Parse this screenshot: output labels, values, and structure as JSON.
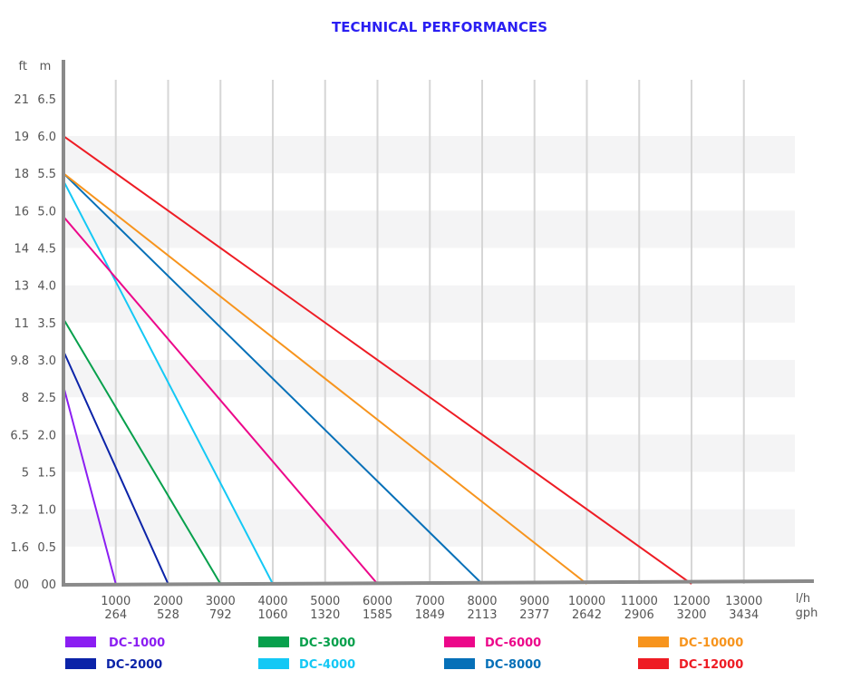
{
  "chart_data": {
    "type": "line",
    "title": "TECHNICAL PERFORMANCES",
    "y_unit_labels": [
      "ft",
      "m"
    ],
    "x_unit_labels": [
      "l/h",
      "gph"
    ],
    "ylim": [
      0,
      6.5
    ],
    "xlim": [
      0,
      14000
    ],
    "y_ticks_m": [
      "00",
      "0.5",
      "1.0",
      "1.5",
      "2.0",
      "2.5",
      "3.0",
      "3.5",
      "4.0",
      "4.5",
      "5.0",
      "5.5",
      "6.0",
      "6.5"
    ],
    "y_ticks_ft": [
      "00",
      "1.6",
      "3.2",
      "5",
      "6.5",
      "8",
      "9.8",
      "11",
      "13",
      "14",
      "16",
      "18",
      "19",
      "21"
    ],
    "x_ticks_lh": [
      "1000",
      "2000",
      "3000",
      "4000",
      "5000",
      "6000",
      "7000",
      "8000",
      "9000",
      "10000",
      "11000",
      "12000",
      "13000"
    ],
    "x_ticks_gph": [
      "264",
      "528",
      "792",
      "1060",
      "1320",
      "1585",
      "1849",
      "2113",
      "2377",
      "2642",
      "2906",
      "3200",
      "3434"
    ],
    "grid": true,
    "legend_placement": "bottom",
    "series": [
      {
        "name": "DC-1000",
        "color": "#8b1ef2",
        "x": [
          0,
          1000
        ],
        "y": [
          2.65,
          0
        ]
      },
      {
        "name": "DC-2000",
        "color": "#0b23a8",
        "x": [
          0,
          2000
        ],
        "y": [
          3.12,
          0
        ]
      },
      {
        "name": "DC-3000",
        "color": "#07a04c",
        "x": [
          0,
          3000
        ],
        "y": [
          3.55,
          0
        ]
      },
      {
        "name": "DC-4000",
        "color": "#14c8f5",
        "x": [
          0,
          4000
        ],
        "y": [
          5.4,
          0
        ]
      },
      {
        "name": "DC-6000",
        "color": "#ec078a",
        "x": [
          0,
          6000
        ],
        "y": [
          4.92,
          0
        ]
      },
      {
        "name": "DC-8000",
        "color": "#0670b8",
        "x": [
          0,
          8000
        ],
        "y": [
          5.5,
          0
        ]
      },
      {
        "name": "DC-10000",
        "color": "#f7941d",
        "x": [
          0,
          10000
        ],
        "y": [
          5.5,
          0
        ]
      },
      {
        "name": "DC-12000",
        "color": "#ee1c24",
        "x": [
          0,
          12000
        ],
        "y": [
          6.0,
          0
        ]
      }
    ]
  }
}
